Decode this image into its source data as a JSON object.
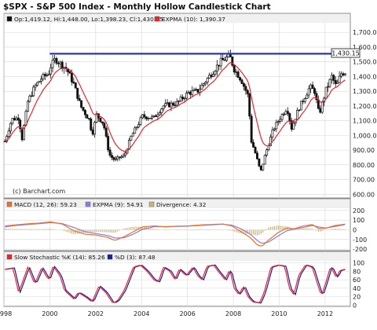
{
  "chart_data": {
    "type": "candlestick",
    "title": "$SPX - S&P 500 Index - Monthly Hollow Candlestick Chart",
    "price_panel": {
      "legend": [
        {
          "label": "Op:1,419.12, Hi:1,448.00, Lo:1,398.23, Cl:1,430.15",
          "color": "#111111"
        },
        {
          "label": "EXPMA (10): 1,390.37",
          "color": "#e8262f"
        }
      ],
      "last_value_label": "1,430.15",
      "y_tick_labels": [
        "600.00",
        "700.00",
        "800.00",
        "900.00",
        "1,000.00",
        "1,100.00",
        "1,200.00",
        "1,300.00",
        "1,400.00",
        "1,500.00",
        "1,600.00",
        "1,700.00"
      ],
      "y_tick_values": [
        600,
        700,
        800,
        900,
        1000,
        1100,
        1200,
        1300,
        1400,
        1500,
        1600,
        1700
      ],
      "ylim": [
        575,
        1760
      ],
      "horizontal_line_value": 1555,
      "watermark": "(c) Barchart.com",
      "price_keypoints": [
        [
          1998.0,
          960
        ],
        [
          1998.3,
          1110
        ],
        [
          1998.6,
          1120
        ],
        [
          1998.75,
          980
        ],
        [
          1999.0,
          1230
        ],
        [
          1999.3,
          1330
        ],
        [
          1999.6,
          1390
        ],
        [
          1999.9,
          1420
        ],
        [
          2000.0,
          1470
        ],
        [
          2000.2,
          1520
        ],
        [
          2000.4,
          1490
        ],
        [
          2000.7,
          1450
        ],
        [
          2001.0,
          1350
        ],
        [
          2001.3,
          1200
        ],
        [
          2001.7,
          1100
        ],
        [
          2001.8,
          1000
        ],
        [
          2002.0,
          1140
        ],
        [
          2002.3,
          1080
        ],
        [
          2002.55,
          870
        ],
        [
          2002.8,
          830
        ],
        [
          2003.0,
          850
        ],
        [
          2003.2,
          860
        ],
        [
          2003.5,
          990
        ],
        [
          2004.0,
          1130
        ],
        [
          2004.5,
          1120
        ],
        [
          2004.9,
          1200
        ],
        [
          2005.5,
          1220
        ],
        [
          2006.0,
          1290
        ],
        [
          2006.4,
          1300
        ],
        [
          2006.8,
          1380
        ],
        [
          2007.0,
          1420
        ],
        [
          2007.4,
          1500
        ],
        [
          2007.8,
          1540
        ],
        [
          2008.0,
          1450
        ],
        [
          2008.3,
          1380
        ],
        [
          2008.6,
          1270
        ],
        [
          2008.75,
          960
        ],
        [
          2008.9,
          890
        ],
        [
          2009.15,
          750
        ],
        [
          2009.35,
          870
        ],
        [
          2009.7,
          1040
        ],
        [
          2010.0,
          1120
        ],
        [
          2010.3,
          1190
        ],
        [
          2010.5,
          1050
        ],
        [
          2010.8,
          1180
        ],
        [
          2011.3,
          1330
        ],
        [
          2011.5,
          1300
        ],
        [
          2011.7,
          1140
        ],
        [
          2012.0,
          1310
        ],
        [
          2012.25,
          1400
        ],
        [
          2012.45,
          1330
        ],
        [
          2012.65,
          1420
        ],
        [
          2012.85,
          1430
        ]
      ]
    },
    "macd_panel": {
      "legend": [
        {
          "label": "MACD (12, 26): 59.23",
          "color": "#e8732b"
        },
        {
          "label": "EXPMA (9): 54.91",
          "color": "#8e7be0"
        },
        {
          "label": "Divergence: 4.32",
          "color": "#c8b47a"
        }
      ],
      "y_tick_labels": [
        "-200",
        "-100",
        "0",
        "100",
        "200"
      ],
      "y_tick_values": [
        -200,
        -100,
        0,
        100,
        200
      ],
      "ylim": [
        -215,
        215
      ],
      "macd_keypoints": [
        [
          1998.0,
          40
        ],
        [
          1998.5,
          52
        ],
        [
          1999.0,
          62
        ],
        [
          1999.5,
          70
        ],
        [
          2000.0,
          82
        ],
        [
          2000.5,
          60
        ],
        [
          2001.0,
          -10
        ],
        [
          2001.5,
          -45
        ],
        [
          2002.0,
          -55
        ],
        [
          2002.5,
          -80
        ],
        [
          2002.8,
          -110
        ],
        [
          2003.2,
          -70
        ],
        [
          2003.6,
          -20
        ],
        [
          2004.0,
          30
        ],
        [
          2004.5,
          40
        ],
        [
          2005.0,
          30
        ],
        [
          2005.5,
          38
        ],
        [
          2006.0,
          40
        ],
        [
          2006.5,
          50
        ],
        [
          2007.0,
          55
        ],
        [
          2007.5,
          60
        ],
        [
          2007.9,
          40
        ],
        [
          2008.3,
          -20
        ],
        [
          2008.7,
          -80
        ],
        [
          2009.0,
          -155
        ],
        [
          2009.2,
          -170
        ],
        [
          2009.5,
          -105
        ],
        [
          2009.9,
          -30
        ],
        [
          2010.3,
          20
        ],
        [
          2010.6,
          10
        ],
        [
          2011.0,
          40
        ],
        [
          2011.4,
          55
        ],
        [
          2011.7,
          10
        ],
        [
          2012.0,
          18
        ],
        [
          2012.4,
          45
        ],
        [
          2012.85,
          59.23
        ]
      ],
      "signal_keypoints": [
        [
          1998.0,
          30
        ],
        [
          1998.5,
          45
        ],
        [
          1999.0,
          55
        ],
        [
          1999.5,
          64
        ],
        [
          2000.0,
          74
        ],
        [
          2000.5,
          64
        ],
        [
          2001.0,
          25
        ],
        [
          2001.5,
          -20
        ],
        [
          2002.0,
          -40
        ],
        [
          2002.5,
          -60
        ],
        [
          2002.8,
          -85
        ],
        [
          2003.2,
          -82
        ],
        [
          2003.6,
          -45
        ],
        [
          2004.0,
          5
        ],
        [
          2004.5,
          32
        ],
        [
          2005.0,
          34
        ],
        [
          2005.5,
          35
        ],
        [
          2006.0,
          38
        ],
        [
          2006.5,
          45
        ],
        [
          2007.0,
          52
        ],
        [
          2007.5,
          57
        ],
        [
          2007.9,
          48
        ],
        [
          2008.3,
          10
        ],
        [
          2008.7,
          -45
        ],
        [
          2009.0,
          -110
        ],
        [
          2009.2,
          -140
        ],
        [
          2009.5,
          -125
        ],
        [
          2009.9,
          -65
        ],
        [
          2010.3,
          -8
        ],
        [
          2010.6,
          5
        ],
        [
          2011.0,
          25
        ],
        [
          2011.4,
          45
        ],
        [
          2011.7,
          28
        ],
        [
          2012.0,
          18
        ],
        [
          2012.4,
          35
        ],
        [
          2012.85,
          54.91
        ]
      ]
    },
    "stochastic_panel": {
      "legend": [
        {
          "label": "Slow Stochastic %K (14): 85.26",
          "color": "#e8262f"
        },
        {
          "label": "%D (3): 87.48",
          "color": "#1a1a9e"
        }
      ],
      "y_tick_labels": [
        "0",
        "20",
        "40",
        "60",
        "80",
        "100"
      ],
      "y_tick_values": [
        0,
        20,
        40,
        60,
        80,
        100
      ],
      "ylim": [
        -3,
        103
      ],
      "k_keypoints": [
        [
          1998.0,
          85
        ],
        [
          1998.35,
          88
        ],
        [
          1998.6,
          30
        ],
        [
          1998.8,
          60
        ],
        [
          1999.0,
          90
        ],
        [
          1999.3,
          50
        ],
        [
          1999.6,
          88
        ],
        [
          1999.9,
          60
        ],
        [
          2000.1,
          92
        ],
        [
          2000.4,
          70
        ],
        [
          2000.6,
          35
        ],
        [
          2001.0,
          15
        ],
        [
          2001.2,
          30
        ],
        [
          2001.5,
          20
        ],
        [
          2001.8,
          8
        ],
        [
          2002.1,
          45
        ],
        [
          2002.4,
          30
        ],
        [
          2002.7,
          5
        ],
        [
          2002.9,
          10
        ],
        [
          2003.2,
          35
        ],
        [
          2003.6,
          90
        ],
        [
          2003.9,
          95
        ],
        [
          2004.2,
          80
        ],
        [
          2004.5,
          60
        ],
        [
          2004.7,
          55
        ],
        [
          2004.9,
          90
        ],
        [
          2005.2,
          80
        ],
        [
          2005.4,
          60
        ],
        [
          2005.6,
          85
        ],
        [
          2005.9,
          70
        ],
        [
          2006.2,
          90
        ],
        [
          2006.4,
          70
        ],
        [
          2006.6,
          60
        ],
        [
          2006.8,
          92
        ],
        [
          2007.1,
          95
        ],
        [
          2007.3,
          80
        ],
        [
          2007.6,
          60
        ],
        [
          2007.8,
          85
        ],
        [
          2008.0,
          40
        ],
        [
          2008.2,
          25
        ],
        [
          2008.4,
          45
        ],
        [
          2008.6,
          20
        ],
        [
          2008.8,
          8
        ],
        [
          2009.1,
          5
        ],
        [
          2009.3,
          30
        ],
        [
          2009.6,
          90
        ],
        [
          2009.9,
          95
        ],
        [
          2010.2,
          92
        ],
        [
          2010.4,
          40
        ],
        [
          2010.6,
          25
        ],
        [
          2010.8,
          70
        ],
        [
          2011.1,
          95
        ],
        [
          2011.4,
          90
        ],
        [
          2011.6,
          55
        ],
        [
          2011.8,
          22
        ],
        [
          2012.0,
          55
        ],
        [
          2012.2,
          92
        ],
        [
          2012.45,
          65
        ],
        [
          2012.6,
          82
        ],
        [
          2012.85,
          85.26
        ]
      ]
    },
    "x_axis": {
      "tick_labels": [
        "1998",
        "2000",
        "2002",
        "2004",
        "2006",
        "2008",
        "2010",
        "2012"
      ],
      "tick_values": [
        1998,
        2000,
        2002,
        2004,
        2006,
        2008,
        2010,
        2012
      ],
      "xlim": [
        1998.0,
        2013.1
      ]
    },
    "grid": true,
    "colors": {
      "background": "#ffffff",
      "gridline": "#d8d8d8",
      "price_candle": "#111111",
      "ema_line": "#e8262f",
      "resistance_line": "#2b35b3",
      "legend_bar": "#f0f0f0",
      "watermark": "#222222"
    }
  }
}
